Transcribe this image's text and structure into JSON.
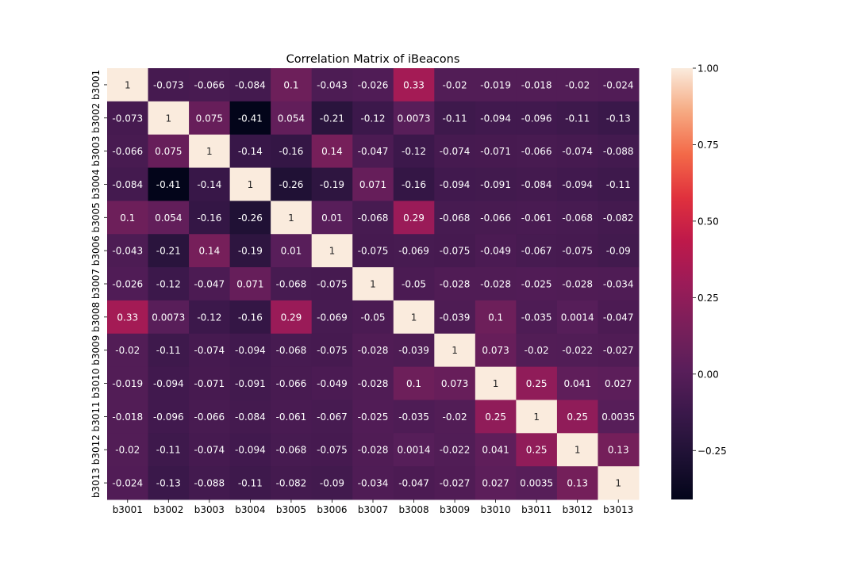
{
  "chart_data": {
    "type": "heatmap",
    "title": "Correlation Matrix of iBeacons",
    "xlabel": "",
    "ylabel": "",
    "labels": [
      "b3001",
      "b3002",
      "b3003",
      "b3004",
      "b3005",
      "b3006",
      "b3007",
      "b3008",
      "b3009",
      "b3010",
      "b3011",
      "b3012",
      "b3013"
    ],
    "values": [
      [
        1,
        -0.073,
        -0.066,
        -0.084,
        0.1,
        -0.043,
        -0.026,
        0.33,
        -0.02,
        -0.019,
        -0.018,
        -0.02,
        -0.024
      ],
      [
        -0.073,
        1,
        0.075,
        -0.41,
        0.054,
        -0.21,
        -0.12,
        0.0073,
        -0.11,
        -0.094,
        -0.096,
        -0.11,
        -0.13
      ],
      [
        -0.066,
        0.075,
        1,
        -0.14,
        -0.16,
        0.14,
        -0.047,
        -0.12,
        -0.074,
        -0.071,
        -0.066,
        -0.074,
        -0.088
      ],
      [
        -0.084,
        -0.41,
        -0.14,
        1,
        -0.26,
        -0.19,
        0.071,
        -0.16,
        -0.094,
        -0.091,
        -0.084,
        -0.094,
        -0.11
      ],
      [
        0.1,
        0.054,
        -0.16,
        -0.26,
        1,
        0.01,
        -0.068,
        0.29,
        -0.068,
        -0.066,
        -0.061,
        -0.068,
        -0.082
      ],
      [
        -0.043,
        -0.21,
        0.14,
        -0.19,
        0.01,
        1,
        -0.075,
        -0.069,
        -0.075,
        -0.049,
        -0.067,
        -0.075,
        -0.09
      ],
      [
        -0.026,
        -0.12,
        -0.047,
        0.071,
        -0.068,
        -0.075,
        1,
        -0.05,
        -0.028,
        -0.028,
        -0.025,
        -0.028,
        -0.034
      ],
      [
        0.33,
        0.0073,
        -0.12,
        -0.16,
        0.29,
        -0.069,
        -0.05,
        1,
        -0.039,
        0.1,
        -0.035,
        0.0014,
        -0.047
      ],
      [
        -0.02,
        -0.11,
        -0.074,
        -0.094,
        -0.068,
        -0.075,
        -0.028,
        -0.039,
        1,
        0.073,
        -0.02,
        -0.022,
        -0.027
      ],
      [
        -0.019,
        -0.094,
        -0.071,
        -0.091,
        -0.066,
        -0.049,
        -0.028,
        0.1,
        0.073,
        1,
        0.25,
        0.041,
        0.027
      ],
      [
        -0.018,
        -0.096,
        -0.066,
        -0.084,
        -0.061,
        -0.067,
        -0.025,
        -0.035,
        -0.02,
        0.25,
        1,
        0.25,
        0.0035
      ],
      [
        -0.02,
        -0.11,
        -0.074,
        -0.094,
        -0.068,
        -0.075,
        -0.028,
        0.0014,
        -0.022,
        0.041,
        0.25,
        1,
        0.13
      ],
      [
        -0.024,
        -0.13,
        -0.088,
        -0.11,
        -0.082,
        -0.09,
        -0.034,
        -0.047,
        -0.027,
        0.027,
        0.0035,
        0.13,
        1
      ]
    ],
    "value_range": [
      -0.41,
      1
    ],
    "colormap": "rocket",
    "annotate": true,
    "colorbar": {
      "ticks": [
        1.0,
        0.75,
        0.5,
        0.25,
        0.0,
        -0.25
      ],
      "tick_labels": [
        "1.00",
        "0.75",
        "0.50",
        "0.25",
        "0.00",
        "−0.25"
      ]
    },
    "grid": false,
    "legend": "colorbar-right"
  }
}
